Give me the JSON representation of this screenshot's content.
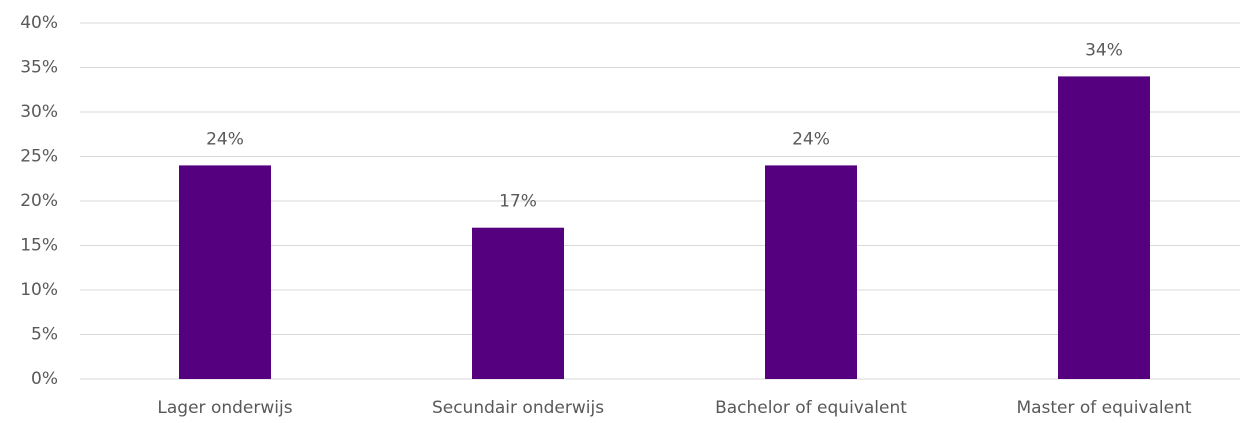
{
  "chart_data": {
    "type": "bar",
    "categories": [
      "Lager onderwijs",
      "Secundair onderwijs",
      "Bachelor of equivalent",
      "Master of equivalent"
    ],
    "values": [
      24,
      17,
      24,
      34
    ],
    "value_labels": [
      "24%",
      "17%",
      "24%",
      "34%"
    ],
    "color": "#55007f",
    "ylim": [
      0,
      40
    ],
    "yticks": [
      {
        "value": 0,
        "label": "0%"
      },
      {
        "value": 5,
        "label": "5%"
      },
      {
        "value": 10,
        "label": "10%"
      },
      {
        "value": 15,
        "label": "15%"
      },
      {
        "value": 20,
        "label": "20%"
      },
      {
        "value": 25,
        "label": "25%"
      },
      {
        "value": 30,
        "label": "30%"
      },
      {
        "value": 35,
        "label": "35%"
      },
      {
        "value": 40,
        "label": "40%"
      }
    ],
    "grid": true
  }
}
